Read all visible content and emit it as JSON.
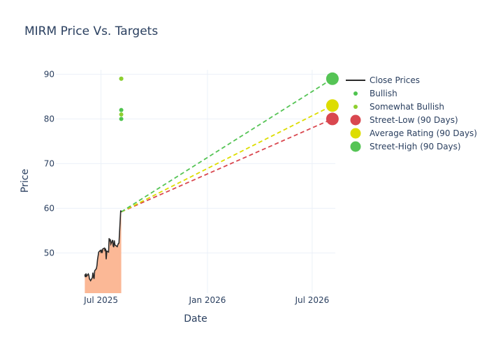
{
  "chart_data": {
    "type": "line",
    "title": "MIRM Price Vs. Targets",
    "xlabel": "Date",
    "ylabel": "Price",
    "x_range": [
      "2025-04-14",
      "2026-08-10"
    ],
    "ylim": [
      41,
      91
    ],
    "x_ticks": [
      {
        "date": "2025-07-01",
        "label": "Jul 2025"
      },
      {
        "date": "2026-01-01",
        "label": "Jan 2026"
      },
      {
        "date": "2026-07-01",
        "label": "Jul 2026"
      }
    ],
    "y_ticks": [
      50,
      60,
      70,
      80,
      90
    ],
    "grid": true,
    "legend_position": "right",
    "colors": {
      "close": "#2a2a2a",
      "fill": "#fbb896",
      "bullish": "#4fc44f",
      "somewhat_bullish": "#8ecf2f",
      "street_low": "#d9474f",
      "average": "#dddd00",
      "street_high": "#55c455"
    },
    "series": [
      {
        "name": "Close Prices",
        "points": [
          [
            "2025-06-03",
            45.2
          ],
          [
            "2025-06-04",
            44.6
          ],
          [
            "2025-06-05",
            45.4
          ],
          [
            "2025-06-06",
            44.8
          ],
          [
            "2025-06-09",
            45.3
          ],
          [
            "2025-06-10",
            45.0
          ],
          [
            "2025-06-11",
            44.2
          ],
          [
            "2025-06-12",
            44.0
          ],
          [
            "2025-06-13",
            43.8
          ],
          [
            "2025-06-16",
            44.5
          ],
          [
            "2025-06-17",
            45.6
          ],
          [
            "2025-06-18",
            44.6
          ],
          [
            "2025-06-19",
            44.2
          ],
          [
            "2025-06-20",
            46.0
          ],
          [
            "2025-06-23",
            46.5
          ],
          [
            "2025-06-24",
            47.2
          ],
          [
            "2025-06-25",
            48.5
          ],
          [
            "2025-06-26",
            49.4
          ],
          [
            "2025-06-27",
            50.2
          ],
          [
            "2025-06-30",
            50.6
          ],
          [
            "2025-07-01",
            50.2
          ],
          [
            "2025-07-02",
            50.5
          ],
          [
            "2025-07-03",
            50.0
          ],
          [
            "2025-07-04",
            50.9
          ],
          [
            "2025-07-07",
            51.1
          ],
          [
            "2025-07-08",
            50.4
          ],
          [
            "2025-07-09",
            51.0
          ],
          [
            "2025-07-10",
            48.6
          ],
          [
            "2025-07-11",
            50.4
          ],
          [
            "2025-07-14",
            50.2
          ],
          [
            "2025-07-15",
            53.3
          ],
          [
            "2025-07-16",
            52.6
          ],
          [
            "2025-07-17",
            53.1
          ],
          [
            "2025-07-18",
            52.0
          ],
          [
            "2025-07-21",
            52.9
          ],
          [
            "2025-07-22",
            51.6
          ],
          [
            "2025-07-23",
            51.3
          ],
          [
            "2025-07-24",
            52.8
          ],
          [
            "2025-07-25",
            51.8
          ],
          [
            "2025-07-28",
            51.5
          ],
          [
            "2025-07-29",
            51.4
          ],
          [
            "2025-07-30",
            51.8
          ],
          [
            "2025-07-31",
            52.1
          ],
          [
            "2025-08-01",
            52.2
          ],
          [
            "2025-08-04",
            59.5
          ],
          [
            "2025-08-05",
            59.2
          ]
        ]
      },
      {
        "name": "Bullish",
        "points": [
          [
            "2025-08-05",
            80
          ],
          [
            "2025-08-05",
            82
          ],
          [
            "2025-08-05",
            89
          ]
        ]
      },
      {
        "name": "Somewhat Bullish",
        "points": [
          [
            "2025-08-05",
            81
          ],
          [
            "2025-08-05",
            89
          ]
        ]
      },
      {
        "name": "Street-Low (90 Days)",
        "points": [
          [
            "2026-08-05",
            80
          ]
        ]
      },
      {
        "name": "Average Rating (90 Days)",
        "points": [
          [
            "2026-08-05",
            83
          ]
        ]
      },
      {
        "name": "Street-High (90 Days)",
        "points": [
          [
            "2026-08-05",
            89
          ]
        ]
      }
    ]
  }
}
